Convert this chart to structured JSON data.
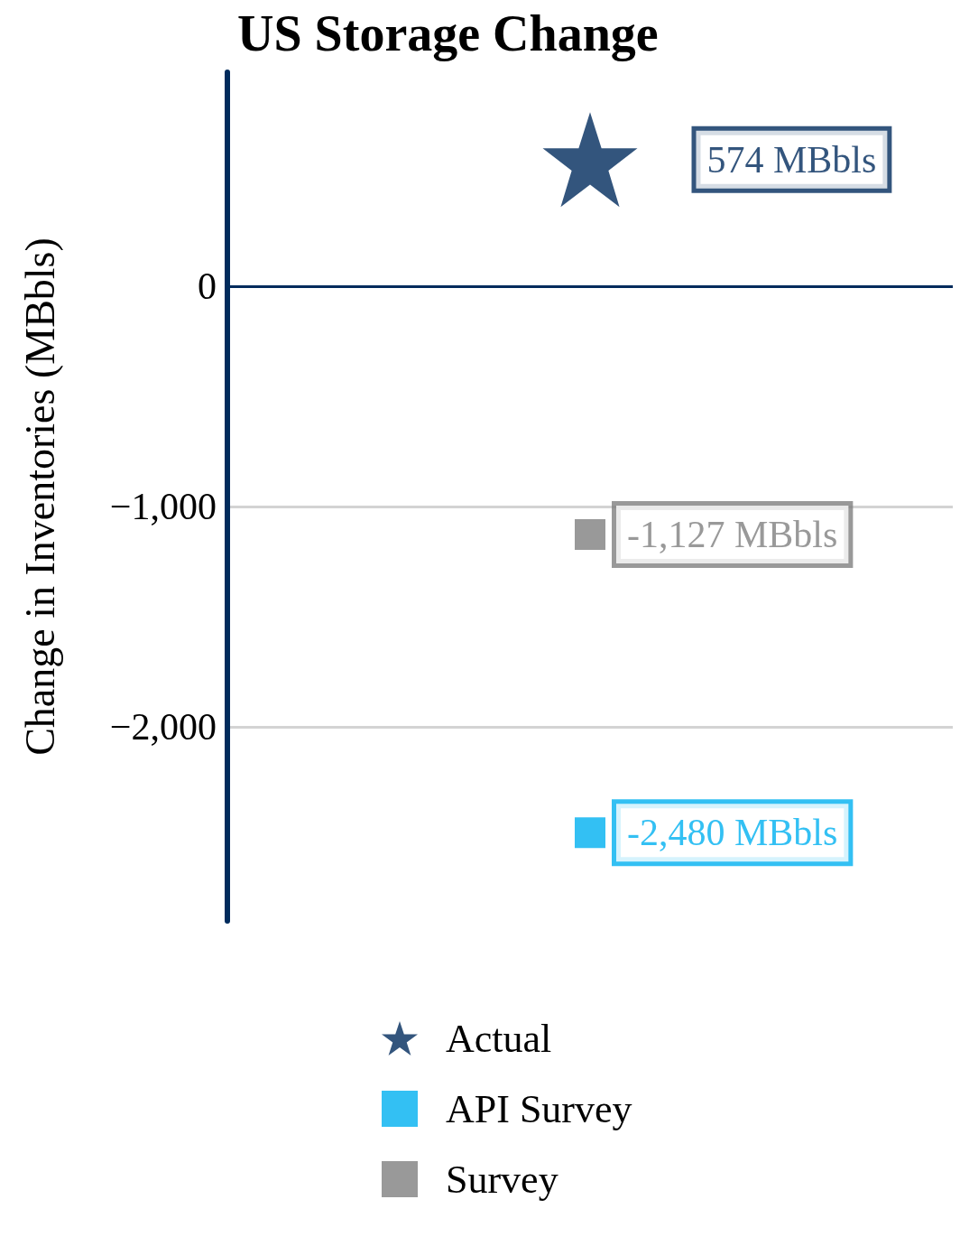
{
  "chart_data": {
    "type": "scatter",
    "title": "US Storage Change",
    "ylabel": "Change in Inventories (MBbls)",
    "categories": [
      null
    ],
    "series": [
      {
        "name": "Actual",
        "color": "#002b5c",
        "marker": "star",
        "values": [
          574
        ],
        "value_labels": [
          "574 MBbls"
        ]
      },
      {
        "name": "API Survey",
        "color": "#00b0f0",
        "marker": "square",
        "values": [
          -2480
        ],
        "value_labels": [
          "-2,480 MBbls"
        ]
      },
      {
        "name": "Survey",
        "color": "#808080",
        "marker": "square",
        "values": [
          -1127
        ],
        "value_labels": [
          "-1,127 MBbls"
        ]
      }
    ],
    "ylim": [
      -2880,
      970
    ],
    "yticks": [
      {
        "value": 0,
        "label": "0"
      },
      {
        "value": -1000,
        "label": "−1,000"
      },
      {
        "value": -2000,
        "label": "−2,000"
      }
    ],
    "grid": "y",
    "legend": "bottom",
    "ref_lines": [
      {
        "axis": "y",
        "value": 0,
        "label": null,
        "color": "#002b5c"
      }
    ]
  }
}
